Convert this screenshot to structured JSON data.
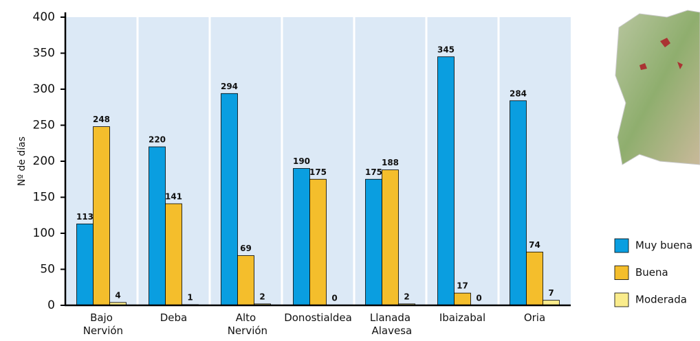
{
  "chart_data": {
    "type": "bar",
    "y_label": "Nº de días",
    "categories": [
      "Bajo Nervión",
      "Deba",
      "Alto Nervión",
      "Donostialdea",
      "Llanada Alavesa",
      "Ibaizabal",
      "Oria"
    ],
    "series": [
      {
        "name": "Muy buena",
        "color": "#0a9ee0",
        "values": [
          113,
          220,
          294,
          190,
          175,
          345,
          284
        ]
      },
      {
        "name": "Buena",
        "color": "#f4be2c",
        "values": [
          248,
          141,
          69,
          175,
          188,
          17,
          74
        ]
      },
      {
        "name": "Moderada",
        "color": "#faec8c",
        "values": [
          4,
          1,
          2,
          0,
          2,
          0,
          7
        ]
      }
    ],
    "ylim": [
      0,
      400
    ],
    "yticks": [
      0,
      50,
      100,
      150,
      200,
      250,
      300,
      350,
      400
    ]
  }
}
